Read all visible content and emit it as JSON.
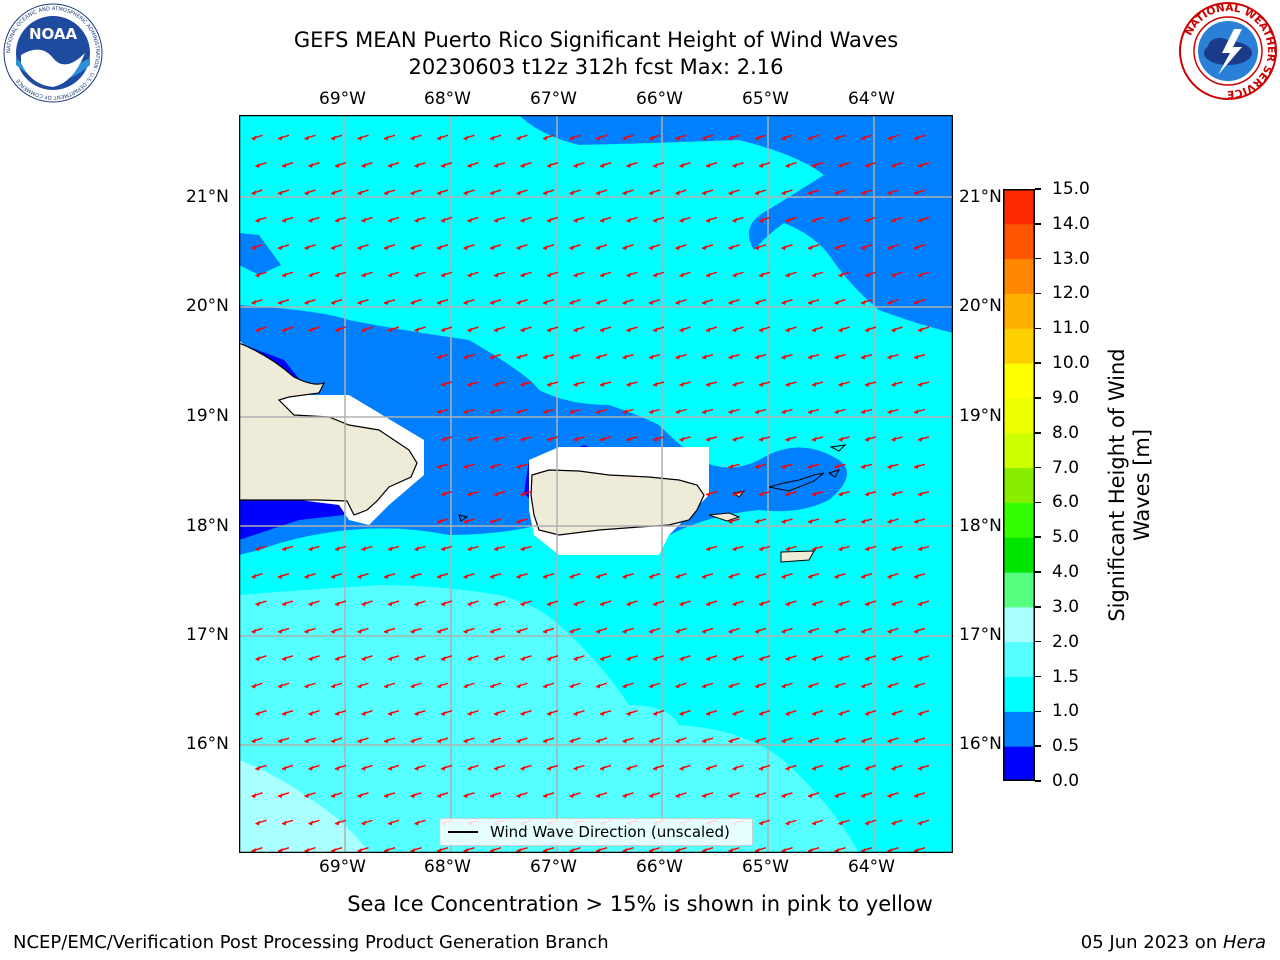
{
  "header": {
    "title_line1": "GEFS MEAN Puerto Rico Significant Height of Wind Waves",
    "title_line2": "20230603 t12z 312h fcst   Max: 2.16"
  },
  "logos": {
    "left": "NOAA",
    "left_ring_text": "NATIONAL OCEANIC AND ATMOSPHERIC ADMINISTRATION · U.S. DEPARTMENT OF COMMERCE",
    "right_ring_text": "NATIONAL WEATHER SERVICE"
  },
  "map": {
    "lon_labels": [
      "69°W",
      "68°W",
      "67°W",
      "66°W",
      "65°W",
      "64°W"
    ],
    "lat_labels": [
      "21°N",
      "20°N",
      "19°N",
      "18°N",
      "17°N",
      "16°N"
    ],
    "legend_label": "Wind Wave Direction (unscaled)",
    "colors": {
      "c0": "#0000ff",
      "c05": "#0080ff",
      "c1": "#00ffff",
      "c15": "#55ffff",
      "c2": "#aaffff",
      "land": "#efebd9",
      "no_data": "#ffffff",
      "arrow": "#ff0000",
      "grid": "#b0b0b0"
    }
  },
  "colorbar": {
    "label_line1": "Significant Height of Wind",
    "label_line2": "Waves [m]",
    "ticks": [
      "0.0",
      "0.5",
      "1.0",
      "1.5",
      "2.0",
      "3.0",
      "4.0",
      "5.0",
      "6.0",
      "7.0",
      "8.0",
      "9.0",
      "10.0",
      "11.0",
      "12.0",
      "13.0",
      "14.0",
      "15.0"
    ],
    "colors": [
      "#0000ff",
      "#0080ff",
      "#00ffff",
      "#55ffff",
      "#aaffff",
      "#55ff80",
      "#00e600",
      "#33ff00",
      "#88ee00",
      "#ccff00",
      "#eeff00",
      "#ffff00",
      "#ffd000",
      "#ffb000",
      "#ff8800",
      "#ff5500",
      "#ff2a00",
      "#ff0000"
    ]
  },
  "caption": "Sea Ice Concentration > 15% is shown in pink to yellow",
  "footer": {
    "left": "NCEP/EMC/Verification Post Processing Product Generation Branch",
    "right_date": "05 Jun 2023 on ",
    "right_host": "Hera"
  }
}
